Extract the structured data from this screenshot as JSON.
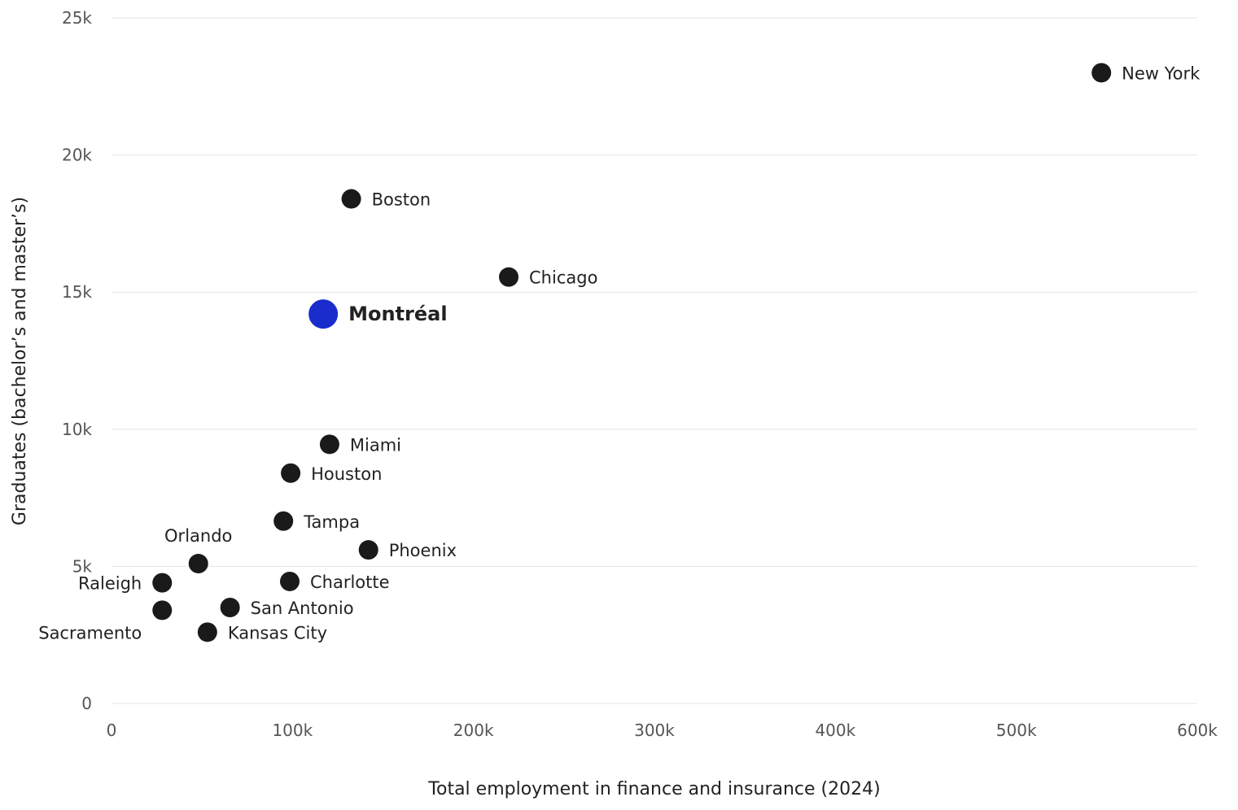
{
  "chart_data": {
    "type": "scatter",
    "title": "",
    "xlabel": "Total employment in finance and insurance (2024)",
    "ylabel": "Graduates (bachelor’s and master’s)",
    "xlim": [
      0,
      600000
    ],
    "ylim": [
      0,
      25000
    ],
    "x_ticks": [
      0,
      100000,
      200000,
      300000,
      400000,
      500000,
      600000
    ],
    "x_tick_labels": [
      "0",
      "100k",
      "200k",
      "300k",
      "400k",
      "500k",
      "600k"
    ],
    "y_ticks": [
      0,
      5000,
      10000,
      15000,
      20000,
      25000
    ],
    "y_tick_labels": [
      "0",
      "5k",
      "10k",
      "15k",
      "20k",
      "25k"
    ],
    "grid": "horizontal",
    "colors": {
      "point": "#1a1a1a",
      "highlight": "#1a2ccc",
      "grid": "#e6e6e6"
    },
    "points": [
      {
        "label": "New York",
        "x": 547000,
        "y": 23000,
        "label_side": "right"
      },
      {
        "label": "Boston",
        "x": 132500,
        "y": 18400,
        "label_side": "right"
      },
      {
        "label": "Chicago",
        "x": 219500,
        "y": 15550,
        "label_side": "right"
      },
      {
        "label": "Montréal",
        "x": 117000,
        "y": 14200,
        "highlight": true,
        "label_side": "right"
      },
      {
        "label": "Miami",
        "x": 120500,
        "y": 9450,
        "label_side": "right"
      },
      {
        "label": "Houston",
        "x": 99000,
        "y": 8400,
        "label_side": "right"
      },
      {
        "label": "Tampa",
        "x": 95000,
        "y": 6650,
        "label_side": "right"
      },
      {
        "label": "Phoenix",
        "x": 142000,
        "y": 5600,
        "label_side": "right"
      },
      {
        "label": "Orlando",
        "x": 48000,
        "y": 5100,
        "label_side": "above"
      },
      {
        "label": "Raleigh",
        "x": 28000,
        "y": 4400,
        "label_side": "left"
      },
      {
        "label": "Charlotte",
        "x": 98500,
        "y": 4450,
        "label_side": "right"
      },
      {
        "label": "San Antonio",
        "x": 65500,
        "y": 3500,
        "label_side": "right"
      },
      {
        "label": "Sacramento",
        "x": 28000,
        "y": 3400,
        "label_side": "below-left"
      },
      {
        "label": "Kansas City",
        "x": 53000,
        "y": 2600,
        "label_side": "right"
      }
    ]
  }
}
